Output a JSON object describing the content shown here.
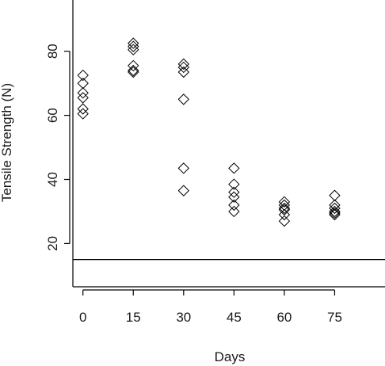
{
  "chart_data": {
    "type": "scatter",
    "title": "",
    "xlabel": "Days",
    "ylabel": "Tensile Strength (N)",
    "xlim": [
      -3,
      90
    ],
    "ylim": [
      6.5,
      96
    ],
    "x_ticks": [
      0,
      15,
      30,
      45,
      60,
      75
    ],
    "y_ticks": [
      20,
      40,
      60,
      80
    ],
    "marker": "diamond-open",
    "grid": false,
    "legend": "none",
    "reference_line": {
      "y": 15
    },
    "points": [
      {
        "x": 0,
        "y": 72.5
      },
      {
        "x": 0,
        "y": 70
      },
      {
        "x": 0,
        "y": 67
      },
      {
        "x": 0,
        "y": 65.5
      },
      {
        "x": 0,
        "y": 62
      },
      {
        "x": 0,
        "y": 60.5
      },
      {
        "x": 15,
        "y": 82.5
      },
      {
        "x": 15,
        "y": 81.5
      },
      {
        "x": 15,
        "y": 80.5
      },
      {
        "x": 15,
        "y": 75.5
      },
      {
        "x": 15,
        "y": 74
      },
      {
        "x": 15,
        "y": 73.5
      },
      {
        "x": 30,
        "y": 76
      },
      {
        "x": 30,
        "y": 75
      },
      {
        "x": 30,
        "y": 73.5
      },
      {
        "x": 30,
        "y": 65
      },
      {
        "x": 30,
        "y": 43.5
      },
      {
        "x": 30,
        "y": 36.5
      },
      {
        "x": 45,
        "y": 43.5
      },
      {
        "x": 45,
        "y": 38.5
      },
      {
        "x": 45,
        "y": 36
      },
      {
        "x": 45,
        "y": 34.5
      },
      {
        "x": 45,
        "y": 32
      },
      {
        "x": 45,
        "y": 30
      },
      {
        "x": 60,
        "y": 33
      },
      {
        "x": 60,
        "y": 32
      },
      {
        "x": 60,
        "y": 31
      },
      {
        "x": 60,
        "y": 30.5
      },
      {
        "x": 60,
        "y": 29
      },
      {
        "x": 60,
        "y": 27
      },
      {
        "x": 75,
        "y": 35
      },
      {
        "x": 75,
        "y": 32
      },
      {
        "x": 75,
        "y": 31
      },
      {
        "x": 75,
        "y": 30
      },
      {
        "x": 75,
        "y": 29.5
      },
      {
        "x": 75,
        "y": 29
      }
    ]
  }
}
